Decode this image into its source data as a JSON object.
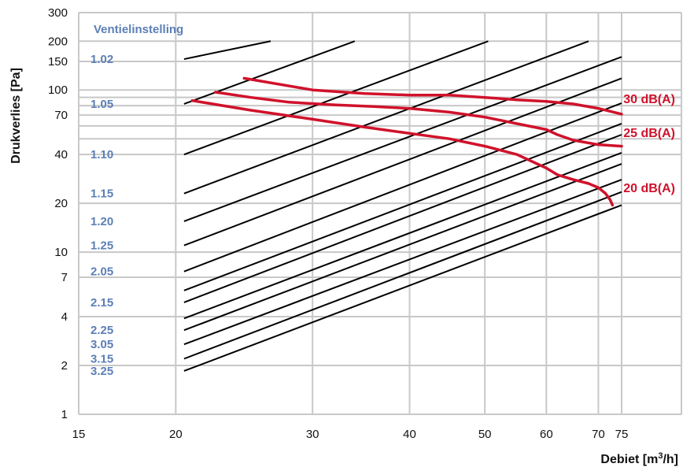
{
  "chart_data": {
    "type": "line",
    "x_scale": "log",
    "y_scale": "log",
    "xlim": [
      15,
      75
    ],
    "ylim": [
      1,
      300
    ],
    "xlabel_prefix": "Debiet [m",
    "xlabel_sup": "3",
    "xlabel_suffix": "/h]",
    "ylabel": "Drukverlies [Pa]",
    "legend_title": "Ventielinstelling",
    "grid": true,
    "x_ticks": [
      15,
      20,
      30,
      40,
      50,
      60,
      70,
      75
    ],
    "x_tick_labels": [
      "15",
      "20",
      "30",
      "40",
      "50",
      "60",
      "70",
      "75"
    ],
    "y_ticks": [
      1,
      2,
      4,
      7,
      10,
      20,
      40,
      70,
      100,
      150,
      200,
      300
    ],
    "y_tick_labels": [
      "1",
      "2",
      "4",
      "7",
      "10",
      "20",
      "40",
      "70",
      "100",
      "150",
      "200",
      "300"
    ],
    "y_minor_grid": [
      50,
      60,
      80,
      90
    ],
    "colors": {
      "settings": "#000000",
      "noise": "#d0122b",
      "grid": "#c8c8c8",
      "setting_label": "#5b7fb6"
    },
    "series": [
      {
        "name": "1.02",
        "x": [
          20.5,
          26.5
        ],
        "y": [
          155,
          200
        ]
      },
      {
        "name": "1.05",
        "x": [
          20.5,
          34
        ],
        "y": [
          82,
          200
        ]
      },
      {
        "name": "1.10",
        "x": [
          20.5,
          50.5
        ],
        "y": [
          40,
          200
        ]
      },
      {
        "name": "1.15",
        "x": [
          20.5,
          68
        ],
        "y": [
          23,
          200
        ]
      },
      {
        "name": "1.20",
        "x": [
          20.5,
          75
        ],
        "y": [
          15.5,
          160
        ]
      },
      {
        "name": "1.25",
        "x": [
          20.5,
          75
        ],
        "y": [
          11,
          118
        ]
      },
      {
        "name": "2.05",
        "x": [
          20.5,
          75
        ],
        "y": [
          7.6,
          83
        ]
      },
      {
        "name": "",
        "x": [
          20.5,
          75
        ],
        "y": [
          5.8,
          62
        ]
      },
      {
        "name": "2.15",
        "x": [
          20.5,
          75
        ],
        "y": [
          4.9,
          53
        ]
      },
      {
        "name": "",
        "x": [
          20.5,
          75
        ],
        "y": [
          3.9,
          41
        ]
      },
      {
        "name": "2.25",
        "x": [
          20.5,
          75
        ],
        "y": [
          3.3,
          35
        ]
      },
      {
        "name": "3.05",
        "x": [
          20.5,
          75
        ],
        "y": [
          2.7,
          28
        ]
      },
      {
        "name": "3.15",
        "x": [
          20.5,
          75
        ],
        "y": [
          2.2,
          23.5
        ]
      },
      {
        "name": "3.25",
        "x": [
          20.5,
          75
        ],
        "y": [
          1.85,
          19.5
        ]
      }
    ],
    "noise_curves": [
      {
        "name": "30 dB(A)",
        "x": [
          24.5,
          30,
          35,
          40,
          45,
          50,
          55,
          60,
          65,
          70,
          75
        ],
        "y": [
          118,
          100,
          95,
          93,
          93,
          90,
          87,
          85,
          82,
          77,
          71
        ]
      },
      {
        "name": "25 dB(A)",
        "x": [
          22.5,
          25,
          28,
          32,
          36,
          40,
          45,
          50,
          55,
          60,
          62,
          65,
          70,
          75
        ],
        "y": [
          97,
          90,
          84,
          81,
          79,
          77,
          73,
          68,
          62,
          57,
          53,
          49,
          46,
          45
        ]
      },
      {
        "name": "20 dB(A)",
        "x": [
          21,
          25,
          30,
          35,
          40,
          45,
          50,
          55,
          60,
          62,
          65,
          68,
          70,
          71.5,
          72.5,
          73
        ],
        "y": [
          86,
          75,
          66,
          59,
          54,
          50,
          45,
          40,
          33,
          30,
          28,
          26.5,
          25,
          23,
          21,
          19.5
        ]
      }
    ]
  }
}
